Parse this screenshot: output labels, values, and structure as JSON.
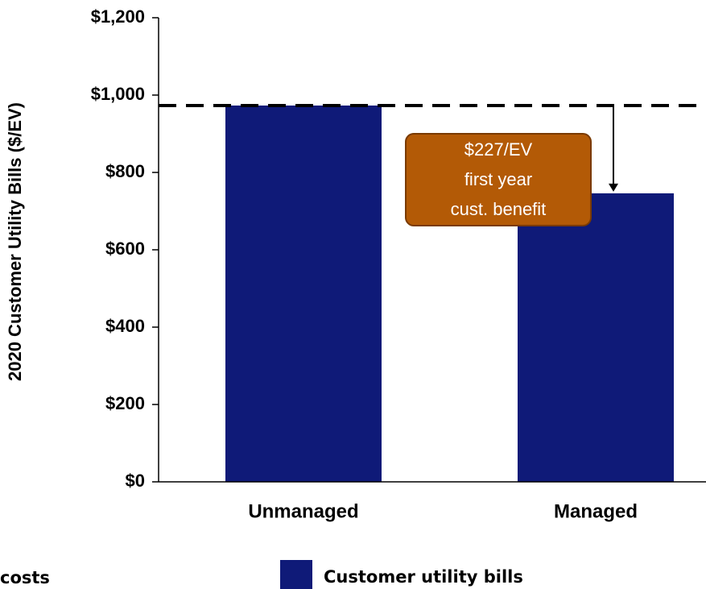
{
  "chart_data": {
    "type": "bar",
    "y_label": "2020 Customer Utility Bills ($/EV)",
    "categories": [
      "Unmanaged",
      "Managed"
    ],
    "series": [
      {
        "name": "Customer utility bills",
        "color": "#0f1a78",
        "values": [
          973,
          746
        ]
      }
    ],
    "ylim": [
      0,
      1200
    ],
    "yticks": [
      {
        "value": 0,
        "label": "$0"
      },
      {
        "value": 200,
        "label": "$200"
      },
      {
        "value": 400,
        "label": "$400"
      },
      {
        "value": 600,
        "label": "$600"
      },
      {
        "value": 800,
        "label": "$800"
      },
      {
        "value": 1000,
        "label": "$1,000"
      },
      {
        "value": 1200,
        "label": "$1,200"
      }
    ],
    "annotation": {
      "lines": [
        "$227/EV",
        "first year",
        "cust. benefit"
      ],
      "color": "#b35a06"
    },
    "cropped_legend_text": "costs"
  }
}
